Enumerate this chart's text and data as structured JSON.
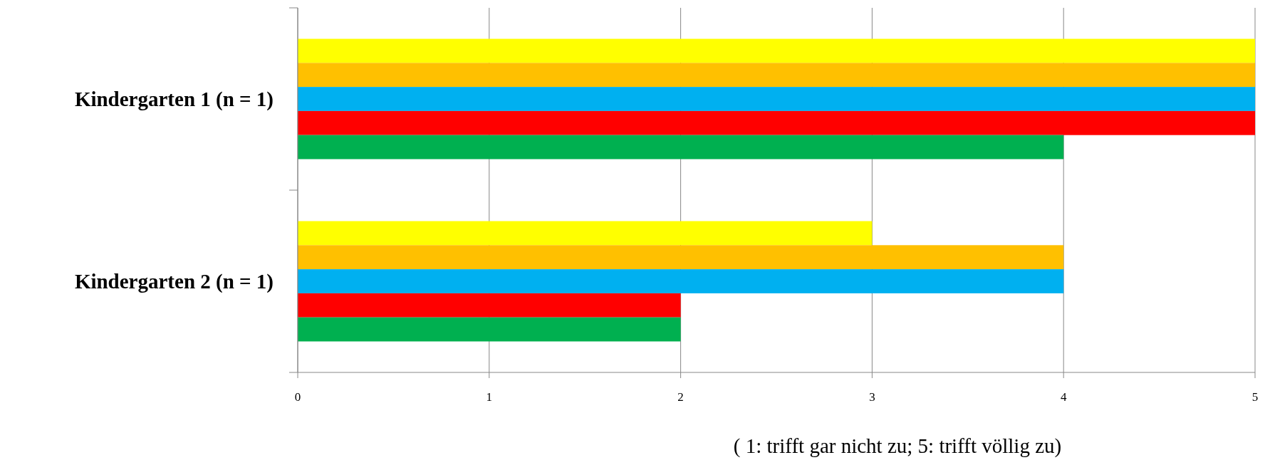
{
  "chart_data": {
    "type": "bar",
    "orientation": "horizontal",
    "categories": [
      "Kindergarten 1 (n = 1)",
      "Kindergarten 2 (n = 1)"
    ],
    "series": [
      {
        "color": "#ffff00",
        "values": [
          5,
          3
        ]
      },
      {
        "color": "#ffc000",
        "values": [
          5,
          4
        ]
      },
      {
        "color": "#00b0f0",
        "values": [
          5,
          4
        ]
      },
      {
        "color": "#ff0000",
        "values": [
          5,
          2
        ]
      },
      {
        "color": "#00b050",
        "values": [
          4,
          2
        ]
      }
    ],
    "xlim": [
      0,
      5
    ],
    "xticks": [
      0,
      1,
      2,
      3,
      4,
      5
    ],
    "grid": "x",
    "xlabel": "( 1: trifft gar nicht zu; 5: trifft völlig zu)"
  }
}
